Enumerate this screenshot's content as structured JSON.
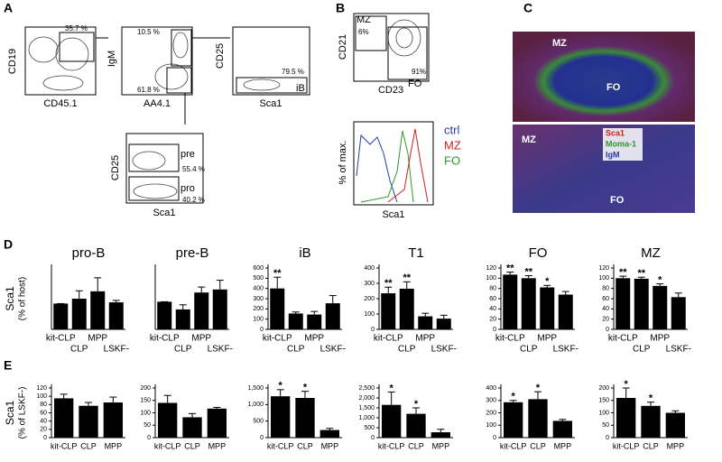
{
  "figure": {
    "panel_a": {
      "letter": "A",
      "plot1": {
        "y": "CD19",
        "x": "CD45.1",
        "gate": "35.7 %"
      },
      "plot2": {
        "y": "IgM",
        "x": "AA4.1",
        "gate_top": "10.5 %",
        "gate_bottom": "61.8 %"
      },
      "plot3": {
        "y": "CD25",
        "x": "Sca1",
        "gate": "79.5 %",
        "gate_name": "iB"
      },
      "plot4": {
        "y": "CD25",
        "x": "Sca1",
        "gate_top_name": "pre",
        "gate_top": "55.4 %",
        "gate_bottom_name": "pro",
        "gate_bottom": "40.2 %"
      }
    },
    "panel_b": {
      "letter": "B",
      "plot1": {
        "y": "CD21",
        "x": "CD23",
        "gate_mz_name": "MZ",
        "gate_mz": "6%",
        "gate_fo": "91%",
        "gate_fo_name": "FO"
      },
      "plot2": {
        "y": "% of max.",
        "x": "Sca1",
        "legend": [
          "ctrl",
          "MZ",
          "FO"
        ]
      }
    },
    "panel_c": {
      "letter": "C",
      "image1": {
        "label_mz": "MZ",
        "label_fo": "FO"
      },
      "image2": {
        "label_mz": "MZ",
        "label_fo": "FO",
        "stains": [
          "Sca1",
          "Moma-1",
          "IgM"
        ]
      }
    },
    "panel_d": "D",
    "panel_e": "E"
  },
  "chart_data": [
    {
      "type": "bar",
      "title": "pro-B",
      "y_label": [
        "Sca1",
        "(% of host)"
      ],
      "categories": [
        "kit-CLP",
        "CLP",
        "MPP",
        "LSKF-"
      ],
      "values": [
        105,
        125,
        155,
        110
      ],
      "errors": [
        0,
        32,
        55,
        8
      ],
      "significance": [
        null,
        null,
        null,
        null
      ],
      "color": "#000000",
      "ylim": [
        0,
        250
      ]
    },
    {
      "type": "bar",
      "title": "pre-B",
      "categories": [
        "kit-CLP",
        "CLP",
        "MPP",
        "LSKF-"
      ],
      "values": [
        90,
        65,
        120,
        130
      ],
      "errors": [
        0,
        15,
        18,
        30
      ],
      "significance": [
        null,
        null,
        null,
        null
      ],
      "color": "#000000",
      "ylim": [
        0,
        200
      ]
    },
    {
      "type": "bar",
      "title": "iB",
      "categories": [
        "kit-CLP",
        "CLP",
        "MPP",
        "LSKF-"
      ],
      "values": [
        400,
        155,
        145,
        255
      ],
      "errors": [
        110,
        15,
        30,
        75
      ],
      "significance": [
        "**",
        null,
        null,
        null
      ],
      "color": "#000000",
      "ylim": [
        0,
        600
      ],
      "yticks": [
        0,
        100,
        200,
        300,
        400,
        500,
        600
      ]
    },
    {
      "type": "bar",
      "title": "T1",
      "categories": [
        "kit-CLP",
        "CLP",
        "MPP",
        "LSKF-"
      ],
      "values": [
        235,
        265,
        85,
        70
      ],
      "errors": [
        40,
        45,
        20,
        22
      ],
      "significance": [
        "**",
        "**",
        null,
        null
      ],
      "color": "#000000",
      "ylim": [
        0,
        400
      ],
      "yticks": [
        0,
        100,
        200,
        300,
        400
      ]
    },
    {
      "type": "bar",
      "title": "FO",
      "categories": [
        "kit-CLP",
        "CLP",
        "MPP",
        "LSKF-"
      ],
      "values": [
        107,
        100,
        82,
        68
      ],
      "errors": [
        5,
        5,
        4,
        6
      ],
      "significance": [
        "**",
        "**",
        "*",
        null
      ],
      "color": "#000000",
      "ylim": [
        0,
        120
      ],
      "yticks": [
        0,
        20,
        40,
        60,
        80,
        100,
        120
      ]
    },
    {
      "type": "bar",
      "title": "MZ",
      "categories": [
        "kit-CLP",
        "CLP",
        "MPP",
        "LSKF-"
      ],
      "values": [
        100,
        99,
        85,
        63
      ],
      "errors": [
        4,
        3,
        4,
        8
      ],
      "significance": [
        "**",
        "**",
        "*",
        null
      ],
      "color": "#000000",
      "ylim": [
        0,
        120
      ],
      "yticks": [
        0,
        20,
        40,
        60,
        80,
        100,
        120
      ]
    },
    {
      "type": "bar",
      "y_label": [
        "Sca1",
        "(% of LSKF-)"
      ],
      "categories": [
        "kit-CLP",
        "CLP",
        "MPP"
      ],
      "values": [
        95,
        77,
        85
      ],
      "errors": [
        10,
        8,
        13
      ],
      "significance": [
        null,
        null,
        null
      ],
      "color": "#000000",
      "ylim": [
        0,
        120
      ],
      "yticks": [
        0,
        20,
        40,
        60,
        80,
        100,
        120
      ]
    },
    {
      "type": "bar",
      "categories": [
        "kit-CLP",
        "CLP",
        "MPP"
      ],
      "values": [
        140,
        82,
        117
      ],
      "errors": [
        30,
        15,
        5
      ],
      "significance": [
        null,
        null,
        null
      ],
      "color": "#000000",
      "ylim": [
        0,
        200
      ],
      "yticks": [
        0,
        50,
        100,
        150,
        200
      ]
    },
    {
      "type": "bar",
      "categories": [
        "kit-CLP",
        "CLP",
        "MPP"
      ],
      "values": [
        1250,
        1200,
        230
      ],
      "errors": [
        200,
        200,
        50
      ],
      "significance": [
        "*",
        "*",
        null
      ],
      "color": "#000000",
      "ylim": [
        0,
        1500
      ],
      "yticks": [
        0,
        500,
        {
          "value": 1000,
          "label": "1,000"
        },
        {
          "value": 1500,
          "label": "1,500"
        }
      ]
    },
    {
      "type": "bar",
      "categories": [
        "kit-CLP",
        "CLP",
        "MPP"
      ],
      "values": [
        1650,
        1200,
        270
      ],
      "errors": [
        650,
        300,
        150
      ],
      "significance": [
        "*",
        "*",
        null
      ],
      "color": "#000000",
      "ylim": [
        0,
        2500
      ],
      "yticks": [
        0,
        500,
        {
          "value": 1000,
          "label": "1,000"
        },
        {
          "value": 1500,
          "label": "1,500"
        },
        {
          "value": 2000,
          "label": "2,000"
        },
        {
          "value": 2500,
          "label": "2,500"
        }
      ]
    },
    {
      "type": "bar",
      "categories": [
        "kit-CLP",
        "CLP",
        "MPP"
      ],
      "values": [
        285,
        310,
        135
      ],
      "errors": [
        15,
        60,
        12
      ],
      "significance": [
        "*",
        "*",
        null
      ],
      "color": "#000000",
      "ylim": [
        0,
        400
      ],
      "yticks": [
        0,
        100,
        200,
        300,
        400
      ]
    },
    {
      "type": "bar",
      "categories": [
        "kit-CLP",
        "CLP",
        "MPP"
      ],
      "values": [
        160,
        128,
        100
      ],
      "errors": [
        40,
        15,
        8
      ],
      "significance": [
        "*",
        "*",
        null
      ],
      "color": "#000000",
      "ylim": [
        0,
        200
      ],
      "yticks": [
        0,
        50,
        100,
        150,
        200
      ]
    }
  ]
}
